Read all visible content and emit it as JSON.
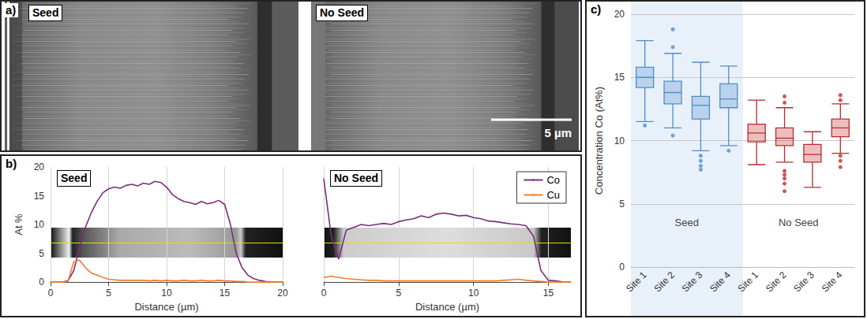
{
  "images": {
    "label": "a)",
    "panels": [
      {
        "title": "Seed"
      },
      {
        "title": "No Seed"
      }
    ],
    "scale_bar": "5 µm"
  },
  "chart_data": [
    {
      "type": "line",
      "panel": "b)",
      "title": "Seed",
      "x_label": "Distance (µm)",
      "y_label": "At %",
      "xlim": [
        0,
        20
      ],
      "xticks": [
        0,
        5,
        10,
        15,
        20
      ],
      "ylim": [
        0,
        20
      ],
      "yticks": [
        0,
        5,
        10,
        15,
        20
      ],
      "grid": true,
      "x": [
        0,
        0.5,
        1,
        1.5,
        2,
        2.5,
        3,
        3.5,
        4,
        4.5,
        5,
        5.5,
        6,
        6.5,
        7,
        7.5,
        8,
        8.5,
        9,
        9.5,
        10,
        10.5,
        11,
        11.5,
        12,
        12.5,
        13,
        13.5,
        14,
        14.5,
        15,
        15.5,
        16,
        16.5,
        17,
        17.5,
        18,
        18.5,
        19,
        19.5,
        20
      ],
      "series": [
        {
          "name": "Co",
          "color": "#7b2d7f",
          "values": [
            0,
            0,
            0,
            0.2,
            2,
            6,
            9.5,
            12,
            14,
            15.5,
            16.2,
            16.5,
            16.3,
            16.8,
            17,
            16.7,
            17.2,
            17,
            17.5,
            17.3,
            16.5,
            15.2,
            14.5,
            14,
            13.8,
            13.5,
            14,
            13.6,
            13.8,
            14.2,
            13.5,
            10,
            5,
            2.5,
            1.2,
            0.6,
            0.3,
            0.1,
            0,
            0,
            0
          ]
        },
        {
          "name": "Cu",
          "color": "#f07c2e",
          "values": [
            0,
            0,
            0,
            0.1,
            3.5,
            3.8,
            2.5,
            1.6,
            1.2,
            0.8,
            0.5,
            0.4,
            0.3,
            0.3,
            0.3,
            0.3,
            0.3,
            0.2,
            0.3,
            0.2,
            0.3,
            0.2,
            0.2,
            0.3,
            0.2,
            0.2,
            0.3,
            0.2,
            0.2,
            0.3,
            0.2,
            0.2,
            0.1,
            0.1,
            0,
            0,
            0,
            0,
            0,
            0,
            0
          ]
        }
      ]
    },
    {
      "type": "line",
      "title": "No Seed",
      "x_label": "Distance (µm)",
      "xlim": [
        0,
        16.5
      ],
      "xticks": [
        0,
        5,
        10,
        15
      ],
      "ylim": [
        0,
        20
      ],
      "yticks": [
        0,
        5,
        10,
        15,
        20
      ],
      "grid": true,
      "tick_labels": "x",
      "legend": "top-right",
      "x": [
        0,
        0.5,
        1,
        1.5,
        2,
        2.5,
        3,
        3.5,
        4,
        4.5,
        5,
        5.5,
        6,
        6.5,
        7,
        7.5,
        8,
        8.5,
        9,
        9.5,
        10,
        10.5,
        11,
        11.5,
        12,
        12.5,
        13,
        13.5,
        14,
        14.5,
        15,
        15.5,
        16,
        16.5
      ],
      "series": [
        {
          "name": "Co",
          "color": "#7b2d7f",
          "values": [
            18,
            8,
            4,
            9,
            9.5,
            10,
            9.8,
            10,
            10.2,
            10,
            10.5,
            10.8,
            11,
            11.5,
            11.2,
            11.8,
            12,
            11.8,
            11.5,
            11.6,
            11.2,
            11,
            10.6,
            10.5,
            10.3,
            10.1,
            10,
            9.8,
            8,
            2,
            0.3,
            0.2,
            0,
            0
          ]
        },
        {
          "name": "Cu",
          "color": "#f07c2e",
          "values": [
            0.8,
            1,
            0.8,
            0.6,
            0.5,
            0.4,
            0.3,
            0.3,
            0.2,
            0.2,
            0.2,
            0.2,
            0.2,
            0.2,
            0.2,
            0.2,
            0.2,
            0.2,
            0.2,
            0.2,
            0.2,
            0.2,
            0.2,
            0.2,
            0.3,
            0.4,
            0.5,
            0.3,
            0.2,
            0.1,
            0,
            0,
            0,
            0
          ]
        }
      ]
    },
    {
      "type": "boxplot",
      "panel": "c)",
      "y_label": "Concentration Co (At%)",
      "ylim": [
        0,
        20
      ],
      "yticks": [
        0,
        5,
        10,
        15,
        20
      ],
      "grid": true,
      "groups": [
        {
          "label": "Seed",
          "color": "#4f8ec9",
          "categories": [
            "Site 1",
            "Site 2",
            "Site 3",
            "Site 4"
          ],
          "boxes": [
            [
              11.5,
              14.2,
              15.0,
              15.8,
              17.9
            ],
            [
              11.0,
              12.9,
              13.8,
              14.7,
              16.9
            ],
            [
              9.2,
              11.7,
              12.8,
              13.5,
              16.2
            ],
            [
              9.6,
              12.6,
              13.3,
              14.5,
              15.9
            ]
          ],
          "outliers": [
            [
              11.2
            ],
            [
              17.4,
              18.8,
              10.4
            ],
            [
              8.8,
              8.4,
              8.0,
              7.7
            ],
            [
              9.2
            ]
          ]
        },
        {
          "label": "No Seed",
          "color": "#c0282d",
          "categories": [
            "Site 1",
            "Site 2",
            "Site 3",
            "Site 4"
          ],
          "boxes": [
            [
              8.1,
              9.9,
              10.6,
              11.3,
              13.2
            ],
            [
              8.3,
              9.6,
              10.2,
              11.0,
              12.6
            ],
            [
              6.3,
              8.3,
              8.9,
              9.7,
              10.7
            ],
            [
              9.0,
              10.3,
              11.0,
              11.7,
              12.9
            ]
          ],
          "outliers": [
            [],
            [
              13.0,
              13.5,
              7.6,
              7.3,
              7.0,
              6.6,
              6.0
            ],
            [],
            [
              13.2,
              13.6,
              8.8,
              8.4,
              7.9
            ]
          ]
        }
      ]
    }
  ]
}
